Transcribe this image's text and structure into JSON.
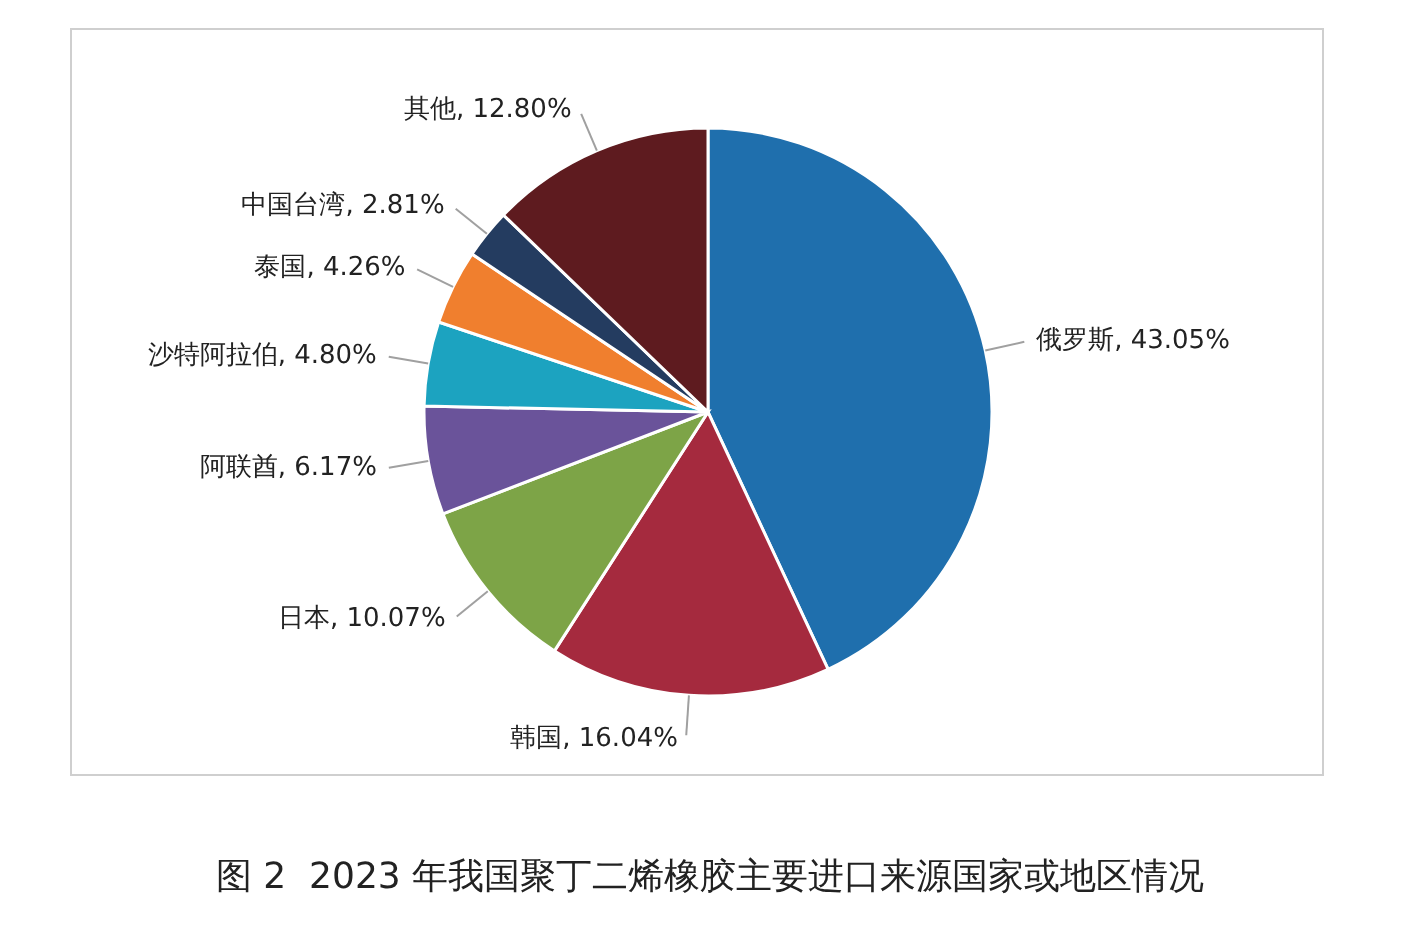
{
  "chart_data": {
    "type": "pie",
    "title": "图 2  2023 年我国聚丁二烯橡胶主要进口来源国家或地区情况",
    "categories": [
      "俄罗斯",
      "韩国",
      "日本",
      "阿联酋",
      "沙特阿拉伯",
      "泰国",
      "中国台湾",
      "其他"
    ],
    "values": [
      43.05,
      16.04,
      10.07,
      6.17,
      4.8,
      4.26,
      2.81,
      12.8
    ],
    "value_labels": [
      "43.05%",
      "16.04%",
      "10.07%",
      "6.17%",
      "4.80%",
      "4.26%",
      "2.81%",
      "12.80%"
    ],
    "colors": [
      "#1f6fad",
      "#a52a3e",
      "#7da447",
      "#6a539a",
      "#1ca3c0",
      "#f07f2e",
      "#243c60",
      "#5e1b1f"
    ],
    "legend": false
  }
}
